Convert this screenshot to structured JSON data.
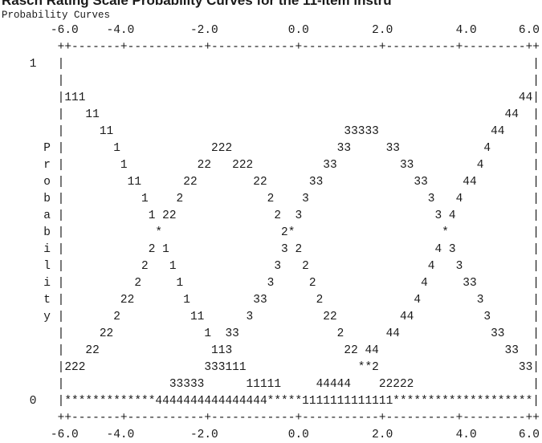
{
  "header": {
    "title": "Rasch Rating Scale Probability Curves for the 11-item instru",
    "subtitle": "Probability Curves"
  },
  "plot": {
    "lines": [
      "       -6.0    -4.0        -2.0          0.0         2.0         4.0      6.0",
      "        ++-------+-----------+------------+-----------+----------+---------++",
      "    1   |                                                                   |",
      "        |                                                                   |",
      "        |111                                                              44|",
      "        |   11                                                          44  |",
      "        |     11                                 33333                44    |",
      "      P |       1             222               33     33            4      |",
      "      r |        1          22   222          33         33         4       |",
      "      o |         11      22        22      33             33     44        |",
      "      b |           1    2            2    3                 3   4          |",
      "      a |            1 22              2  3                   3 4           |",
      "      b |             *                 2*                     *            |",
      "      i |            2 1                3 2                   4 3           |",
      "      l |           2   1              3   2                 4   3          |",
      "      i |          2     1            3     2               4     33        |",
      "      t |        22       1         33       2             4        3       |",
      "      y |       2          11      3          22         44          3      |",
      "        |     22             1  33              2      44             33    |",
      "        |   22                113                22 44                  33  |",
      "        |222                 333111                **2                    33|",
      "        |               33333      11111     44444    22222                 |",
      "    0   |*************4444444444444444*****1111111111111********************|",
      "        ++-------+-----------+------------+-----------+----------+---------++",
      "       -6.0    -4.0        -2.0          0.0         2.0         4.0      6.0"
    ]
  }
}
